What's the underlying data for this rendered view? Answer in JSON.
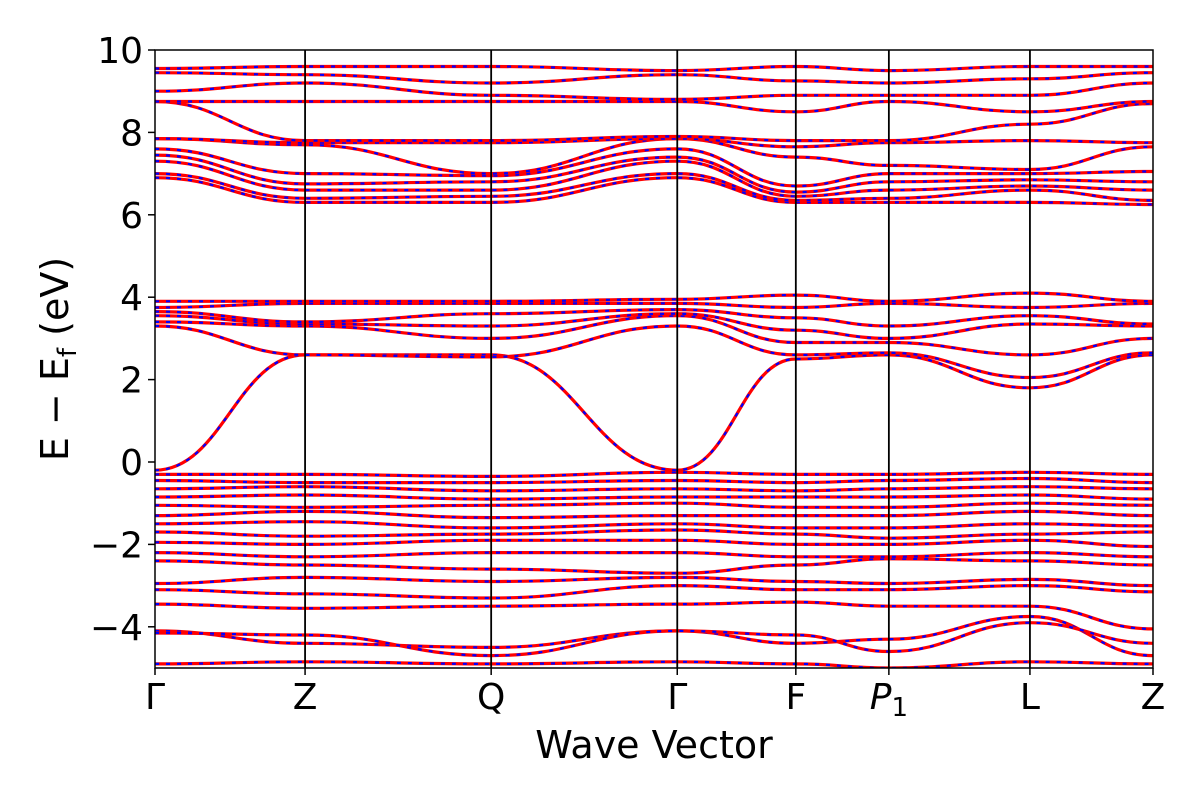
{
  "chart_data": {
    "type": "line",
    "title": "",
    "xlabel": "Wave Vector",
    "ylabel_parts": {
      "E": "E",
      "minus": "−",
      "sub": "f",
      "unit": "(eV)"
    },
    "ylim": [
      -5,
      10
    ],
    "y_ticks": [
      10,
      8,
      6,
      4,
      2,
      0,
      -2,
      -4
    ],
    "y_tick_labels": [
      "10",
      "8",
      "6",
      "4",
      "2",
      "0",
      "−2",
      "−4"
    ],
    "k_path": [
      {
        "label": "Γ",
        "x": 0.0
      },
      {
        "label": "Z",
        "x": 1.0
      },
      {
        "label": "Q",
        "x": 2.24
      },
      {
        "label": "Γ",
        "x": 3.48
      },
      {
        "label": "F",
        "x": 4.27
      },
      {
        "label": "P",
        "sub": "1",
        "x": 4.89,
        "italic": true
      },
      {
        "label": "L",
        "x": 5.83
      },
      {
        "label": "Z",
        "x": 6.65
      }
    ],
    "xlim": [
      0,
      6.65
    ],
    "grid": false,
    "colors": {
      "spin_a": "#ff0000",
      "spin_b": "#0000ff",
      "kline": "#000000"
    },
    "bands": [
      {
        "name": "",
        "y": [
          -4.9,
          -4.85,
          -4.9,
          -4.85,
          -4.9,
          -5.0,
          -4.85,
          -4.9
        ]
      },
      {
        "name": "",
        "y": [
          -4.1,
          -4.4,
          -4.5,
          -4.1,
          -4.4,
          -4.3,
          -3.75,
          -4.7
        ]
      },
      {
        "name": "",
        "y": [
          -4.15,
          -4.2,
          -4.7,
          -4.1,
          -4.2,
          -4.6,
          -3.9,
          -4.4
        ]
      },
      {
        "name": "",
        "y": [
          -3.45,
          -3.55,
          -3.5,
          -3.45,
          -3.4,
          -3.5,
          -3.5,
          -4.05
        ]
      },
      {
        "name": "",
        "y": [
          -3.1,
          -3.2,
          -3.3,
          -3.0,
          -3.1,
          -3.1,
          -3.0,
          -3.15
        ]
      },
      {
        "name": "",
        "y": [
          -2.95,
          -2.8,
          -2.9,
          -2.8,
          -2.9,
          -2.95,
          -2.85,
          -3.0
        ]
      },
      {
        "name": "",
        "y": [
          -2.4,
          -2.5,
          -2.6,
          -2.7,
          -2.5,
          -2.35,
          -2.4,
          -2.5
        ]
      },
      {
        "name": "",
        "y": [
          -2.2,
          -2.3,
          -2.2,
          -2.2,
          -2.3,
          -2.3,
          -2.2,
          -2.3
        ]
      },
      {
        "name": "",
        "y": [
          -1.95,
          -2.0,
          -1.9,
          -1.9,
          -2.0,
          -2.0,
          -1.9,
          -2.05
        ]
      },
      {
        "name": "",
        "y": [
          -1.7,
          -1.8,
          -1.75,
          -1.65,
          -1.75,
          -1.85,
          -1.75,
          -1.7
        ]
      },
      {
        "name": "",
        "y": [
          -1.5,
          -1.45,
          -1.6,
          -1.5,
          -1.6,
          -1.6,
          -1.5,
          -1.55
        ]
      },
      {
        "name": "",
        "y": [
          -1.3,
          -1.2,
          -1.35,
          -1.3,
          -1.3,
          -1.3,
          -1.2,
          -1.3
        ]
      },
      {
        "name": "",
        "y": [
          -1.05,
          -1.1,
          -1.05,
          -1.0,
          -1.1,
          -1.1,
          -1.0,
          -1.05
        ]
      },
      {
        "name": "",
        "y": [
          -0.85,
          -0.8,
          -0.9,
          -0.85,
          -0.85,
          -0.85,
          -0.8,
          -0.9
        ]
      },
      {
        "name": "",
        "y": [
          -0.65,
          -0.6,
          -0.7,
          -0.65,
          -0.7,
          -0.65,
          -0.6,
          -0.65
        ]
      },
      {
        "name": "",
        "y": [
          -0.45,
          -0.5,
          -0.5,
          -0.45,
          -0.5,
          -0.45,
          -0.4,
          -0.5
        ]
      },
      {
        "name": "",
        "y": [
          -0.3,
          -0.3,
          -0.35,
          -0.25,
          -0.3,
          -0.3,
          -0.25,
          -0.3
        ]
      },
      {
        "name": "",
        "y": [
          -0.2,
          2.6,
          2.6,
          -0.2,
          2.5,
          2.6,
          1.8,
          2.6
        ]
      },
      {
        "name": "",
        "y": [
          3.3,
          2.6,
          2.55,
          3.3,
          2.6,
          2.65,
          2.05,
          2.65
        ]
      },
      {
        "name": "",
        "y": [
          3.4,
          3.3,
          3.0,
          3.55,
          2.9,
          2.9,
          2.6,
          3.0
        ]
      },
      {
        "name": "",
        "y": [
          3.55,
          3.35,
          3.3,
          3.6,
          3.2,
          3.0,
          3.35,
          3.3
        ]
      },
      {
        "name": "",
        "y": [
          3.65,
          3.4,
          3.6,
          3.7,
          3.5,
          3.3,
          3.55,
          3.35
        ]
      },
      {
        "name": "",
        "y": [
          3.75,
          3.85,
          3.85,
          3.85,
          3.75,
          3.85,
          3.75,
          3.85
        ]
      },
      {
        "name": "",
        "y": [
          3.9,
          3.9,
          3.9,
          3.95,
          4.05,
          3.9,
          4.1,
          3.9
        ]
      },
      {
        "name": "",
        "y": [
          6.9,
          6.3,
          6.3,
          6.9,
          6.3,
          6.3,
          6.3,
          6.25
        ]
      },
      {
        "name": "",
        "y": [
          7.0,
          6.4,
          6.45,
          7.0,
          6.35,
          6.4,
          6.6,
          6.35
        ]
      },
      {
        "name": "",
        "y": [
          7.3,
          6.6,
          6.6,
          7.3,
          6.45,
          6.6,
          6.7,
          6.6
        ]
      },
      {
        "name": "",
        "y": [
          7.45,
          6.75,
          6.8,
          7.4,
          6.55,
          6.8,
          6.85,
          6.8
        ]
      },
      {
        "name": "",
        "y": [
          7.6,
          7.0,
          6.95,
          7.6,
          6.7,
          7.0,
          7.0,
          7.05
        ]
      },
      {
        "name": "",
        "y": [
          7.85,
          7.7,
          7.0,
          7.85,
          7.4,
          7.2,
          7.1,
          7.65
        ]
      },
      {
        "name": "",
        "y": [
          7.85,
          7.75,
          7.75,
          7.85,
          7.65,
          7.75,
          7.8,
          7.75
        ]
      },
      {
        "name": "",
        "y": [
          8.75,
          7.8,
          7.8,
          7.9,
          7.8,
          7.8,
          8.2,
          8.7
        ]
      },
      {
        "name": "",
        "y": [
          8.75,
          8.75,
          8.75,
          8.75,
          8.5,
          8.75,
          8.5,
          8.75
        ]
      },
      {
        "name": "",
        "y": [
          9.0,
          9.2,
          8.9,
          8.8,
          8.9,
          8.9,
          8.9,
          9.2
        ]
      },
      {
        "name": "",
        "y": [
          9.45,
          9.4,
          9.2,
          9.4,
          9.25,
          9.2,
          9.3,
          9.45
        ]
      },
      {
        "name": "",
        "y": [
          9.55,
          9.6,
          9.6,
          9.5,
          9.6,
          9.5,
          9.6,
          9.6
        ]
      }
    ]
  }
}
